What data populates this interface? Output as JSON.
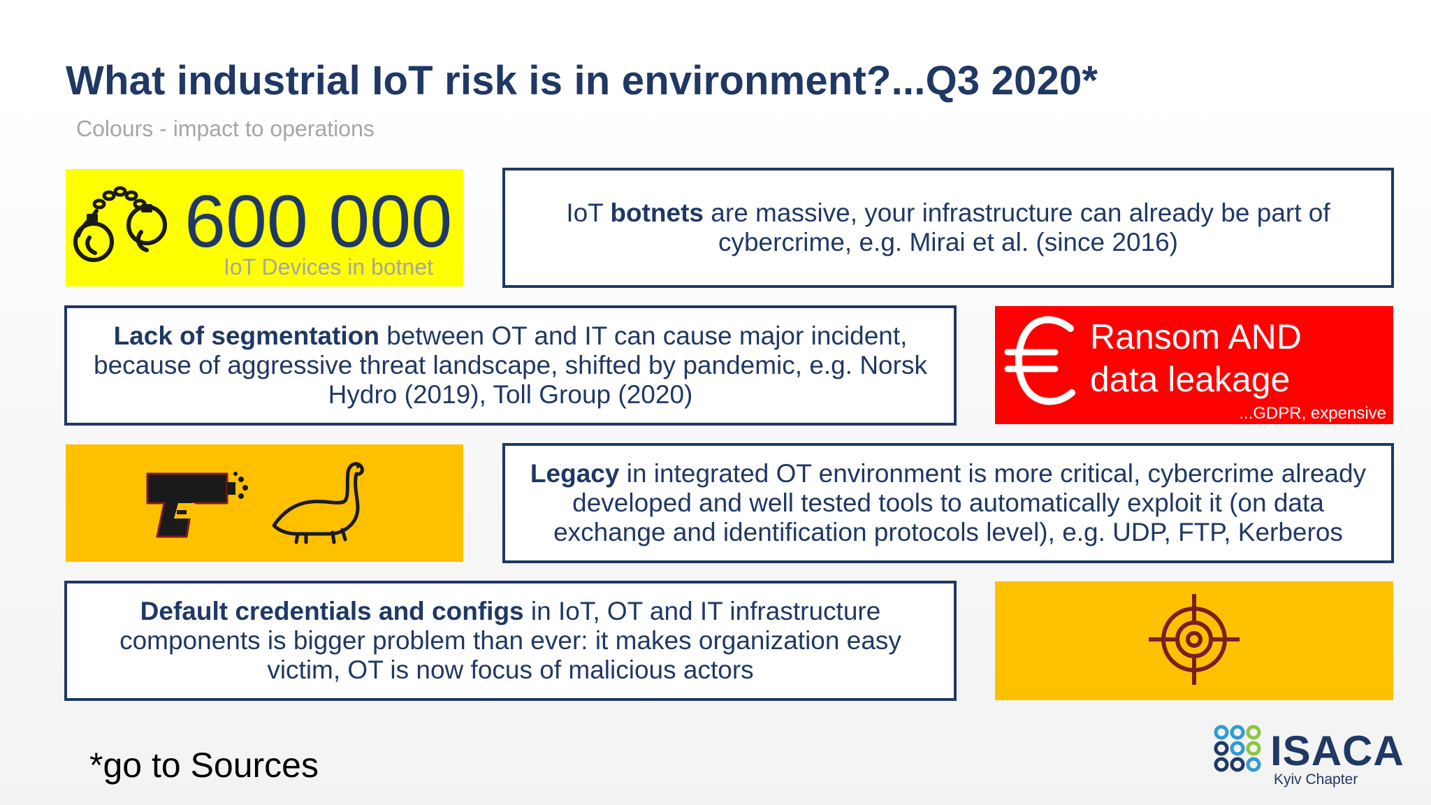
{
  "title": "What industrial IoT risk is in environment?...Q3 2020*",
  "subtitle": "Colours - impact to operations",
  "colors": {
    "navy": "#1f3864",
    "yellow": "#ffff00",
    "orange": "#ffc000",
    "red": "#ff0000",
    "grey": "#a6a6a6",
    "dark_red": "#7b1e1e"
  },
  "stat": {
    "value": "600 000",
    "caption": "IoT Devices in botnet",
    "icon": "handcuffs-icon"
  },
  "botnets": {
    "bold": "botnets",
    "before": "IoT ",
    "after": " are massive, your infrastructure can already be part of cybercrime, e.g. Mirai et al. (since 2016)"
  },
  "segmentation": {
    "bold": "Lack of segmentation",
    "after": " between OT and IT can cause major incident, because of aggressive threat landscape, shifted by pandemic, e.g. Norsk Hydro (2019), Toll Group (2020)"
  },
  "ransom": {
    "line1": "Ransom AND",
    "line2": "data leakage",
    "note": "...GDPR, expensive",
    "icon": "euro-icon"
  },
  "legacy": {
    "bold": "Legacy",
    "after": " in integrated OT environment is more critical, cybercrime already developed and well tested tools to automatically exploit it (on data exchange and identification protocols level), e.g. UDP, FTP, Kerberos",
    "icons": [
      "spray-gun-icon",
      "dinosaur-icon"
    ]
  },
  "credentials": {
    "bold": "Default credentials and configs",
    "after": " in IoT, OT and IT infrastructure components is bigger problem than ever: it makes organization easy victim, OT is now focus of malicious actors"
  },
  "target": {
    "icon": "crosshair-target-icon"
  },
  "footnote": "*go to Sources",
  "logo": {
    "name": "ISACA",
    "chapter": "Kyiv Chapter",
    "mark": "isaca-logo-mark"
  }
}
